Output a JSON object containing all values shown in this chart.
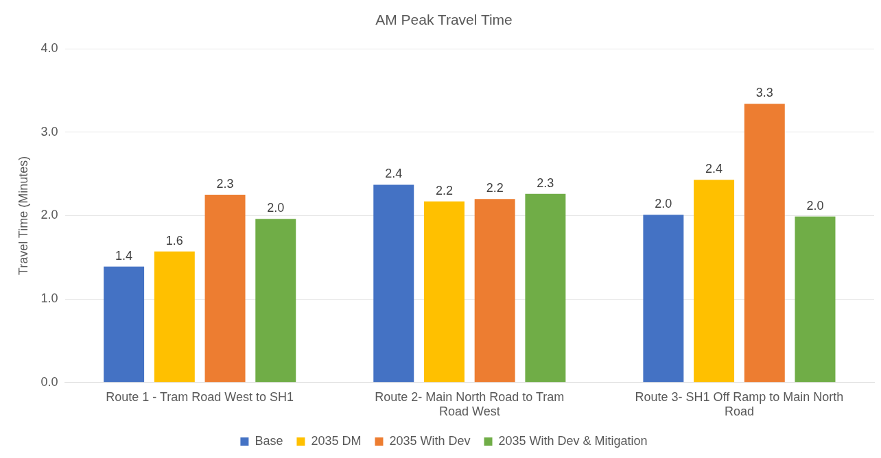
{
  "chart_data": {
    "type": "bar",
    "title": "AM Peak Travel Time",
    "ylabel": "Travel Time (Minutes)",
    "categories": [
      "Route 1 - Tram Road West to SH1",
      "Route 2- Main North Road to Tram Road West",
      "Route 3- SH1 Off Ramp to Main North Road"
    ],
    "series": [
      {
        "name": "Base",
        "color": "#4472c4",
        "values": [
          1.39,
          2.37,
          2.01
        ],
        "value_labels": [
          "1.4",
          "2.4",
          "2.0"
        ]
      },
      {
        "name": "2035 DM",
        "color": "#ffc000",
        "values": [
          1.57,
          2.17,
          2.43
        ],
        "value_labels": [
          "1.6",
          "2.2",
          "2.4"
        ]
      },
      {
        "name": "2035 With Dev",
        "color": "#ed7d31",
        "values": [
          2.25,
          2.2,
          3.34
        ],
        "value_labels": [
          "2.3",
          "2.2",
          "3.3"
        ]
      },
      {
        "name": "2035 With Dev & Mitigation",
        "color": "#70ad47",
        "values": [
          1.96,
          2.26,
          1.99
        ],
        "value_labels": [
          "2.0",
          "2.3",
          "2.0"
        ]
      }
    ],
    "ylim": [
      0,
      4
    ],
    "yticks": [
      {
        "value": 0,
        "label": "0.0"
      },
      {
        "value": 1,
        "label": "1.0"
      },
      {
        "value": 2,
        "label": "2.0"
      },
      {
        "value": 3,
        "label": "3.0"
      },
      {
        "value": 4,
        "label": "4.0"
      }
    ],
    "grid": "y",
    "legend": "bottom"
  }
}
